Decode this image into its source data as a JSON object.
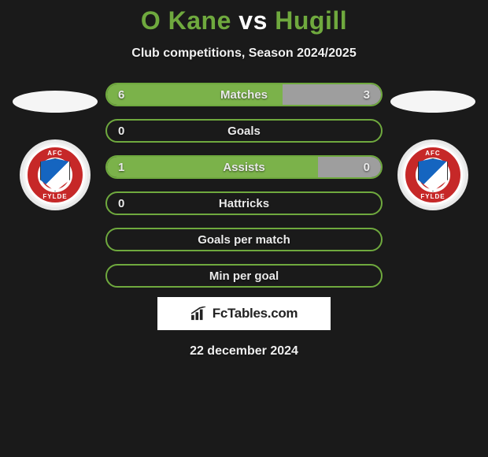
{
  "title_html": "O Kane <span style='color:#ffffff'>vs</span> Hugill",
  "title_color_player": "#6fa93e",
  "title_color_vs": "#ffffff",
  "subtitle": "Club competitions, Season 2024/2025",
  "date": "22 december 2024",
  "brand": "FcTables.com",
  "colors": {
    "green_border": "#6fa93e",
    "green_fill": "#7bb24a",
    "grey_fill": "#9e9e9e",
    "bg": "#1a1a1a"
  },
  "badge": {
    "top_text": "AFC",
    "bottom_text": "FYLDE"
  },
  "stats": [
    {
      "label": "Matches",
      "left_value": "6",
      "right_value": "3",
      "left_filled": true,
      "right_filled": true,
      "left_pct": 64,
      "right_pct": 36,
      "left_fill_color": "#7bb24a",
      "right_fill_color": "#9e9e9e"
    },
    {
      "label": "Goals",
      "left_value": "0",
      "right_value": "",
      "left_filled": false,
      "right_filled": false,
      "left_pct": 0,
      "right_pct": 0,
      "left_fill_color": "",
      "right_fill_color": ""
    },
    {
      "label": "Assists",
      "left_value": "1",
      "right_value": "0",
      "left_filled": true,
      "right_filled": true,
      "left_pct": 77,
      "right_pct": 23,
      "left_fill_color": "#7bb24a",
      "right_fill_color": "#9e9e9e"
    },
    {
      "label": "Hattricks",
      "left_value": "0",
      "right_value": "",
      "left_filled": false,
      "right_filled": false,
      "left_pct": 0,
      "right_pct": 0,
      "left_fill_color": "",
      "right_fill_color": ""
    },
    {
      "label": "Goals per match",
      "left_value": "",
      "right_value": "",
      "left_filled": false,
      "right_filled": false,
      "left_pct": 0,
      "right_pct": 0,
      "left_fill_color": "",
      "right_fill_color": ""
    },
    {
      "label": "Min per goal",
      "left_value": "",
      "right_value": "",
      "left_filled": false,
      "right_filled": false,
      "left_pct": 0,
      "right_pct": 0,
      "left_fill_color": "",
      "right_fill_color": ""
    }
  ]
}
